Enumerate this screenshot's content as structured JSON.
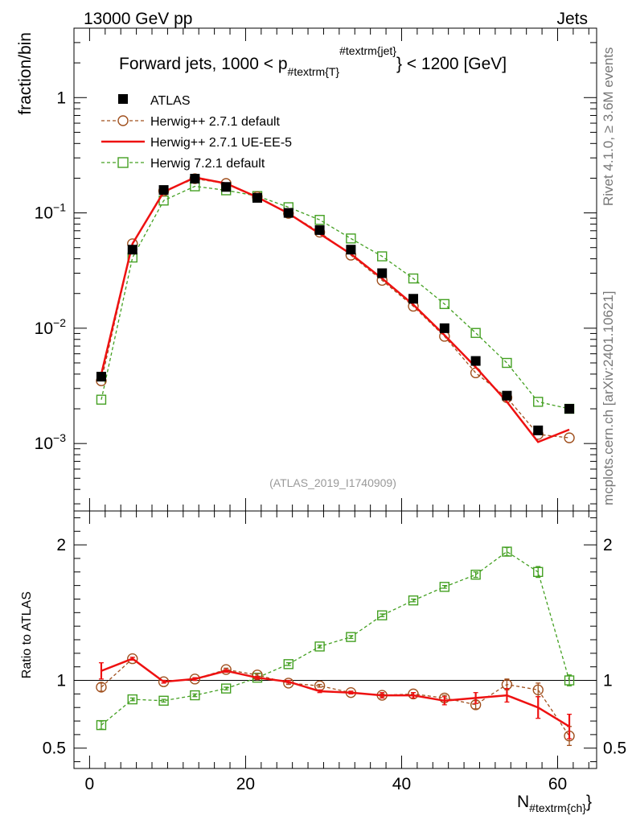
{
  "header": {
    "left": "13000 GeV pp",
    "right": "Jets"
  },
  "side_labels": {
    "rivet": "Rivet 4.1.0, ≥ 3.6M events",
    "mcplots": "mcplots.cern.ch [arXiv:2401.10621]"
  },
  "chart_data": [
    {
      "type": "scatter",
      "panel": "main",
      "title": {
        "main": "Forward jets, 1000 < p",
        "sub": "#textrm{T}",
        "sup": "#textrm{jet}",
        "end": "} < 1200 [GeV]"
      },
      "ylabel": "fraction/bin",
      "yscale": "log",
      "ylim": [
        0.00026,
        4
      ],
      "xlim": [
        -2,
        65
      ],
      "xticks": [
        0,
        20,
        40,
        60
      ],
      "xtick_labels": [
        "0",
        "20",
        "40",
        "60"
      ],
      "ytick_labels": {
        "1": {
          "base": "1",
          "exp": ""
        },
        "0.1": {
          "base": "10",
          "exp": "−1"
        },
        "0.01": {
          "base": "10",
          "exp": "−2"
        },
        "0.001": {
          "base": "10",
          "exp": "−3"
        }
      },
      "watermark": "(ATLAS_2019_I1740909)",
      "x": [
        1.5,
        5.5,
        9.5,
        13.5,
        17.5,
        21.5,
        25.5,
        29.5,
        33.5,
        37.5,
        41.5,
        45.5,
        49.5,
        53.5,
        57.5,
        61.5
      ],
      "series": [
        {
          "name": "ATLAS",
          "style": "data",
          "color": "#000000",
          "values": [
            0.0038,
            0.048,
            0.158,
            0.198,
            0.168,
            0.135,
            0.1,
            0.071,
            0.048,
            0.03,
            0.018,
            0.01,
            0.0052,
            0.0026,
            0.0013,
            0.002
          ]
        },
        {
          "name": "Herwig++ 2.7.1 default",
          "style": "circle-dashed",
          "color": "#a0501e",
          "values": [
            0.0035,
            0.054,
            0.155,
            0.198,
            0.18,
            0.138,
            0.099,
            0.068,
            0.043,
            0.026,
            0.0155,
            0.0085,
            0.0041,
            0.0025,
            0.0012,
            0.00112
          ]
        },
        {
          "name": "Herwig++ 2.7.1 UE-EE-5",
          "style": "solid",
          "color": "#ee1111",
          "values": [
            0.004,
            0.054,
            0.152,
            0.203,
            0.18,
            0.137,
            0.099,
            0.066,
            0.044,
            0.027,
            0.016,
            0.0087,
            0.0046,
            0.0023,
            0.00103,
            0.00132
          ]
        },
        {
          "name": "Herwig 7.2.1 default",
          "style": "square-dashed",
          "color": "#44a022",
          "values": [
            0.0024,
            0.041,
            0.128,
            0.17,
            0.157,
            0.14,
            0.112,
            0.087,
            0.06,
            0.042,
            0.027,
            0.0162,
            0.0091,
            0.005,
            0.0023,
            0.002
          ]
        }
      ]
    },
    {
      "type": "line",
      "panel": "ratio",
      "ylabel": "Ratio to ATLAS",
      "xlabel": {
        "main": "N",
        "sub": "#textrm{ch}",
        "end": "}"
      },
      "ylim": [
        0.35,
        2.25
      ],
      "xlim": [
        -2,
        65
      ],
      "yticks": [
        0.5,
        1,
        2
      ],
      "ytick_labels": [
        "0.5",
        "1",
        "2"
      ],
      "reference_line": 1,
      "x": [
        1.5,
        5.5,
        9.5,
        13.5,
        17.5,
        21.5,
        25.5,
        29.5,
        33.5,
        37.5,
        41.5,
        45.5,
        49.5,
        53.5,
        57.5,
        61.5
      ],
      "series": [
        {
          "name": "Herwig++ 2.7.1 default",
          "style": "circle-dashed",
          "color": "#a0501e",
          "values": [
            0.95,
            1.16,
            0.99,
            1.01,
            1.08,
            1.04,
            0.98,
            0.96,
            0.91,
            0.89,
            0.9,
            0.87,
            0.82,
            0.97,
            0.93,
            0.59
          ],
          "errors": [
            0.03,
            0.01,
            0.01,
            0.01,
            0.01,
            0.01,
            0.01,
            0.01,
            0.01,
            0.01,
            0.01,
            0.02,
            0.03,
            0.04,
            0.05,
            0.07
          ]
        },
        {
          "name": "Herwig++ 2.7.1 UE-EE-5",
          "style": "solid",
          "color": "#ee1111",
          "values": [
            1.07,
            1.16,
            0.99,
            1.01,
            1.07,
            1.02,
            0.99,
            0.92,
            0.91,
            0.89,
            0.89,
            0.85,
            0.87,
            0.89,
            0.8,
            0.66
          ],
          "errors": [
            0.06,
            0.01,
            0.01,
            0.01,
            0.01,
            0.01,
            0.01,
            0.01,
            0.01,
            0.02,
            0.02,
            0.03,
            0.04,
            0.05,
            0.08,
            0.09
          ]
        },
        {
          "name": "Herwig 7.2.1 default",
          "style": "square-dashed",
          "color": "#44a022",
          "values": [
            0.67,
            0.86,
            0.85,
            0.89,
            0.94,
            1.02,
            1.12,
            1.25,
            1.32,
            1.48,
            1.59,
            1.69,
            1.78,
            1.95,
            1.8,
            1.0
          ],
          "errors": [
            0.03,
            0.01,
            0.01,
            0.01,
            0.01,
            0.01,
            0.01,
            0.01,
            0.01,
            0.01,
            0.01,
            0.01,
            0.02,
            0.03,
            0.04,
            0.04
          ]
        }
      ]
    }
  ]
}
